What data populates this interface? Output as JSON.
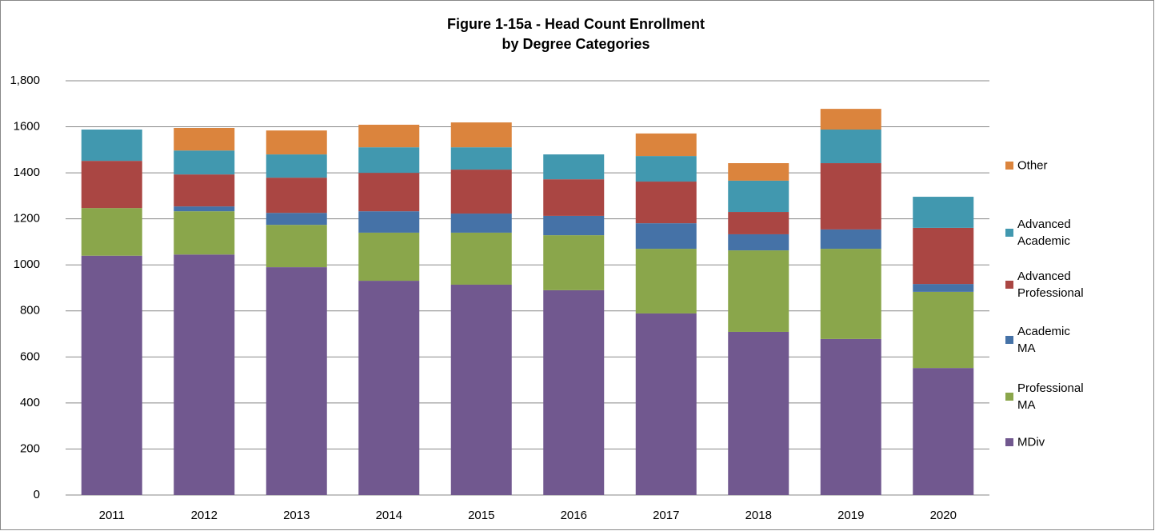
{
  "chart_data": {
    "type": "stacked_bar",
    "title": "Figure 1-15a - Head Count Enrollment",
    "subtitle": "by Degree Categories",
    "categories": [
      "2011",
      "2012",
      "2013",
      "2014",
      "2015",
      "2016",
      "2017",
      "2018",
      "2019",
      "2020"
    ],
    "series": [
      {
        "name": "MDiv",
        "color": "#71588f",
        "values": [
          1040,
          1045,
          990,
          931,
          914,
          890,
          789,
          709,
          678,
          552
        ]
      },
      {
        "name": "Professional MA",
        "color": "#8aa64b",
        "values": [
          207,
          188,
          184,
          209,
          226,
          239,
          281,
          354,
          392,
          331
        ]
      },
      {
        "name": "Academic MA",
        "color": "#4572a7",
        "values": [
          0,
          21,
          52,
          93,
          83,
          84,
          111,
          70,
          84,
          34
        ]
      },
      {
        "name": "Advanced Professional",
        "color": "#aa4643",
        "values": [
          205,
          139,
          153,
          167,
          191,
          159,
          181,
          97,
          288,
          244
        ]
      },
      {
        "name": "Advanced Academic",
        "color": "#4198af",
        "values": [
          136,
          104,
          101,
          111,
          97,
          108,
          111,
          136,
          146,
          135
        ]
      },
      {
        "name": "Other",
        "color": "#db843d",
        "values": [
          0,
          98,
          104,
          98,
          108,
          0,
          98,
          76,
          90,
          0
        ]
      }
    ],
    "ylim": [
      0,
      1800
    ],
    "yticks": [
      0,
      200,
      400,
      600,
      800,
      1000,
      1200,
      1400,
      1600,
      {
        "value": 1800,
        "label": "1,800"
      }
    ],
    "grid": true,
    "legend": "right"
  }
}
